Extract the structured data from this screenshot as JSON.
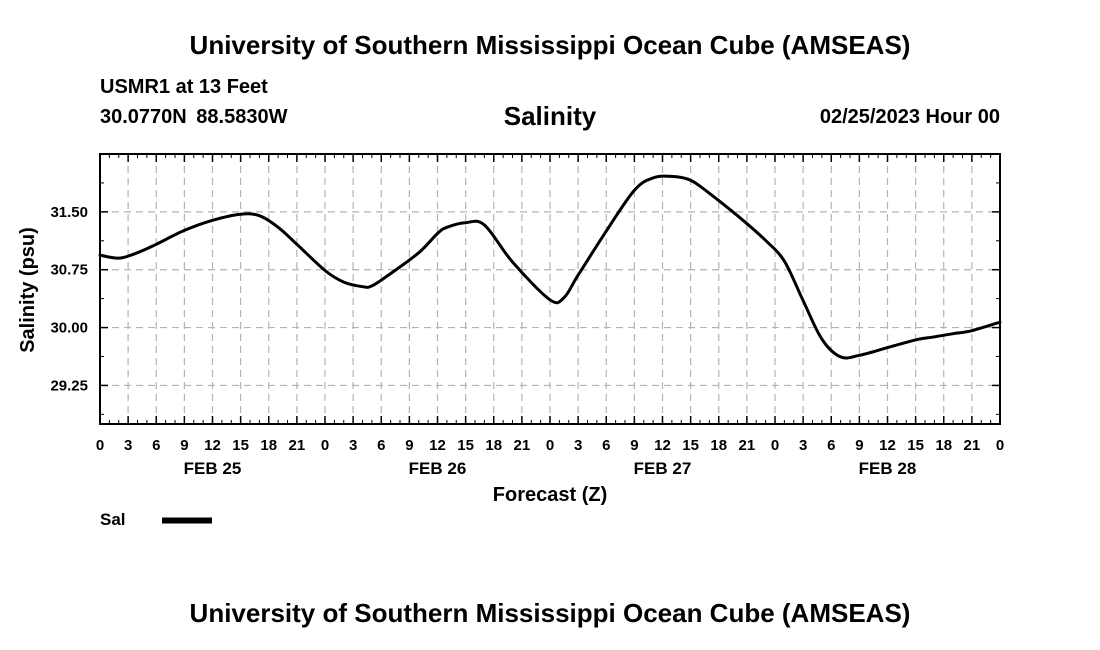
{
  "header": {
    "title": "University of Southern Mississippi Ocean Cube (AMSEAS)",
    "station": "USMR1 at 13 Feet",
    "coordinates": "30.0770N  88.5830W",
    "datetime": "02/25/2023 Hour 00"
  },
  "footer": {
    "title": "University of Southern Mississippi Ocean Cube (AMSEAS)"
  },
  "chart_data": {
    "type": "line",
    "title": "Salinity",
    "xlabel": "Forecast (Z)",
    "ylabel": "Salinity (psu)",
    "xlim": [
      0,
      96
    ],
    "ylim": [
      28.75,
      32.25
    ],
    "y_ticks": [
      29.25,
      30.0,
      30.75,
      31.5
    ],
    "y_tick_labels": [
      "29.25",
      "30.00",
      "30.75",
      "31.50"
    ],
    "x_tick_labels": [
      "0",
      "3",
      "6",
      "9",
      "12",
      "15",
      "18",
      "21",
      "0",
      "3",
      "6",
      "9",
      "12",
      "15",
      "18",
      "21",
      "0",
      "3",
      "6",
      "9",
      "12",
      "15",
      "18",
      "21",
      "0",
      "3",
      "6",
      "9",
      "12",
      "15",
      "18",
      "21",
      "0"
    ],
    "day_labels": [
      {
        "label": "FEB 25",
        "hour": 12
      },
      {
        "label": "FEB 26",
        "hour": 36
      },
      {
        "label": "FEB 27",
        "hour": 60
      },
      {
        "label": "FEB 28",
        "hour": 84
      }
    ],
    "grid": true,
    "legend": "bottom-left",
    "series": [
      {
        "name": "Sal",
        "color": "#000000",
        "x": [
          0,
          2,
          4,
          6,
          9,
          12,
          15,
          17,
          19,
          21,
          24,
          26,
          28,
          29,
          31,
          34,
          36,
          37,
          39,
          41,
          44,
          48,
          49.5,
          51,
          54,
          57,
          59,
          61,
          63,
          65,
          68,
          71,
          73,
          75,
          77,
          79,
          81,
          84,
          87,
          89,
          91,
          93,
          96
        ],
        "y": [
          30.94,
          30.9,
          30.97,
          31.08,
          31.26,
          31.39,
          31.47,
          31.45,
          31.3,
          31.08,
          30.74,
          30.59,
          30.53,
          30.54,
          30.7,
          30.97,
          31.22,
          31.3,
          31.36,
          31.33,
          30.85,
          30.36,
          30.39,
          30.68,
          31.25,
          31.78,
          31.94,
          31.96,
          31.91,
          31.74,
          31.45,
          31.13,
          30.86,
          30.35,
          29.85,
          29.62,
          29.64,
          29.74,
          29.84,
          29.88,
          29.92,
          29.96,
          30.07
        ]
      }
    ]
  }
}
